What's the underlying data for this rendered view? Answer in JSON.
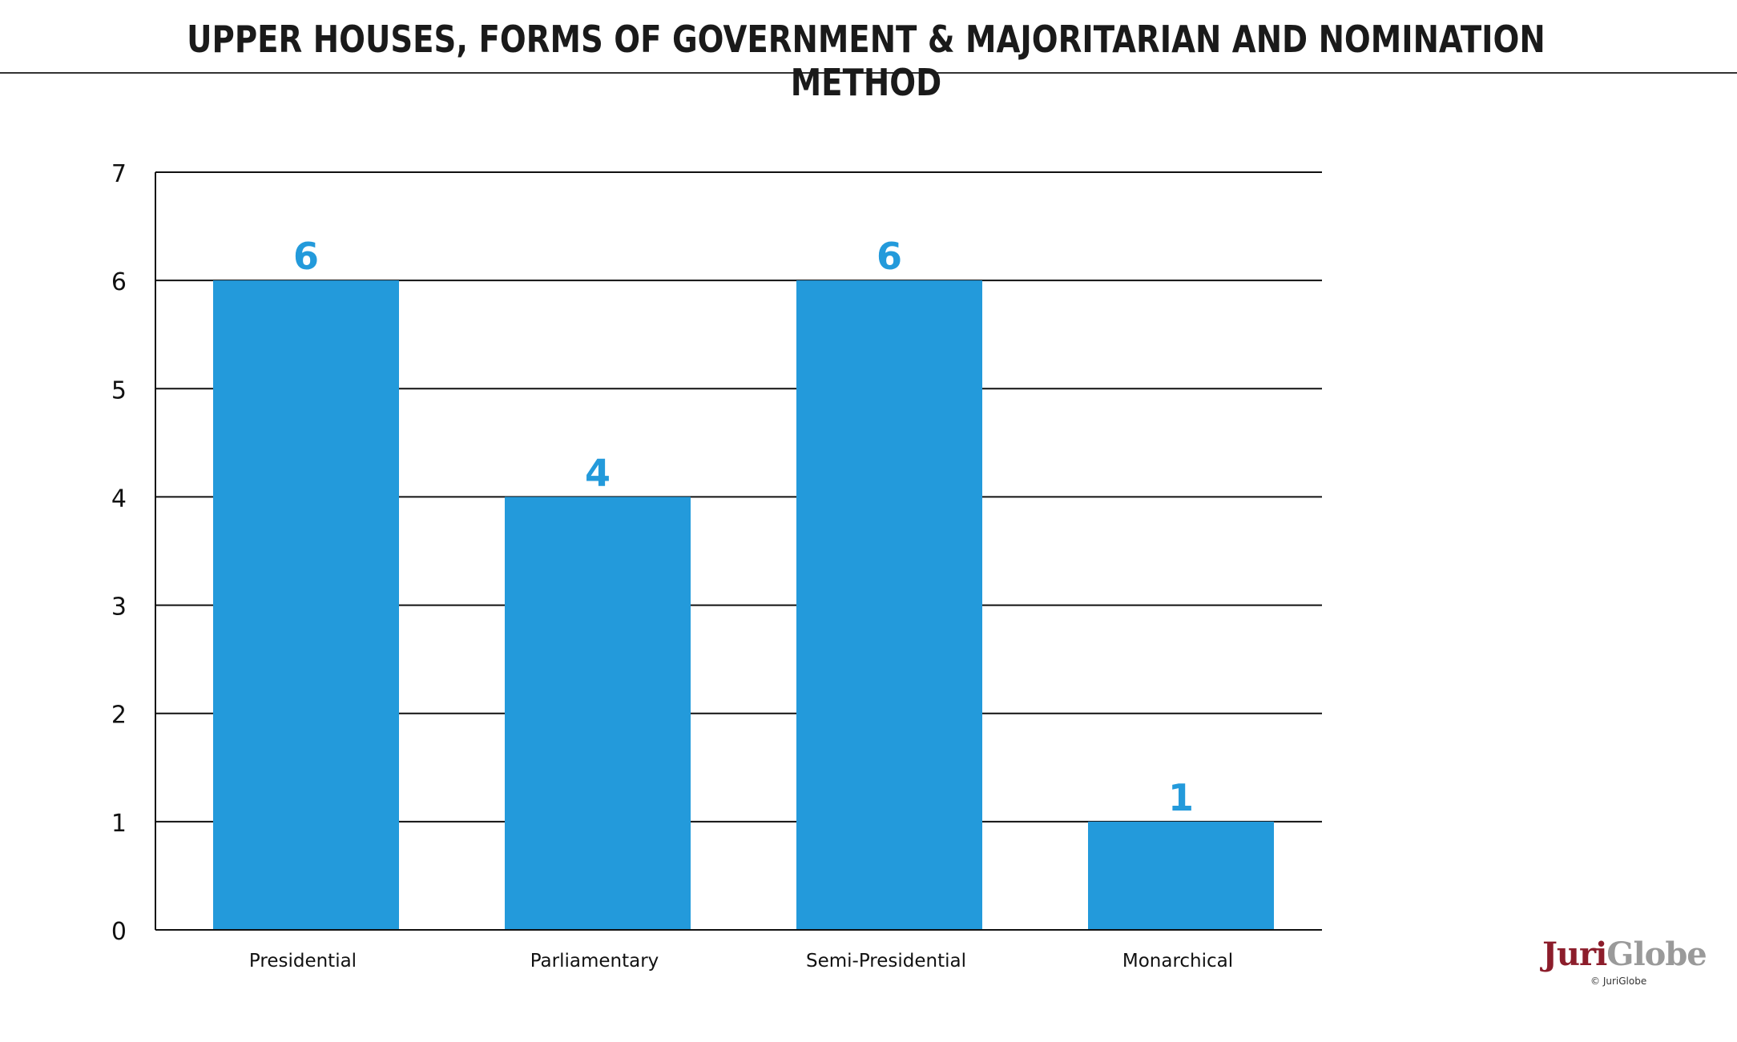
{
  "chart_data": {
    "type": "bar",
    "title": "UPPER HOUSES, FORMS OF GOVERNMENT & MAJORITARIAN AND NOMINATION METHOD",
    "categories": [
      "Presidential",
      "Parliamentary",
      "Semi-Presidential",
      "Monarchical"
    ],
    "values": [
      6,
      4,
      6,
      1
    ],
    "data_labels": [
      "6",
      "4",
      "6",
      "1"
    ],
    "y_ticks": [
      "0",
      "1",
      "2",
      "3",
      "4",
      "5",
      "6",
      "7"
    ],
    "ylim": [
      0,
      7
    ],
    "grid": true,
    "legend": "none",
    "bar_color": "#239ADB",
    "label_color": "#239ADB"
  },
  "logo": {
    "brand_first": "Juri",
    "brand_second": "Globe",
    "copyright": "© JuriGlobe",
    "brand_color": "#8C1D2B",
    "accent_color": "#9A9A9A"
  }
}
